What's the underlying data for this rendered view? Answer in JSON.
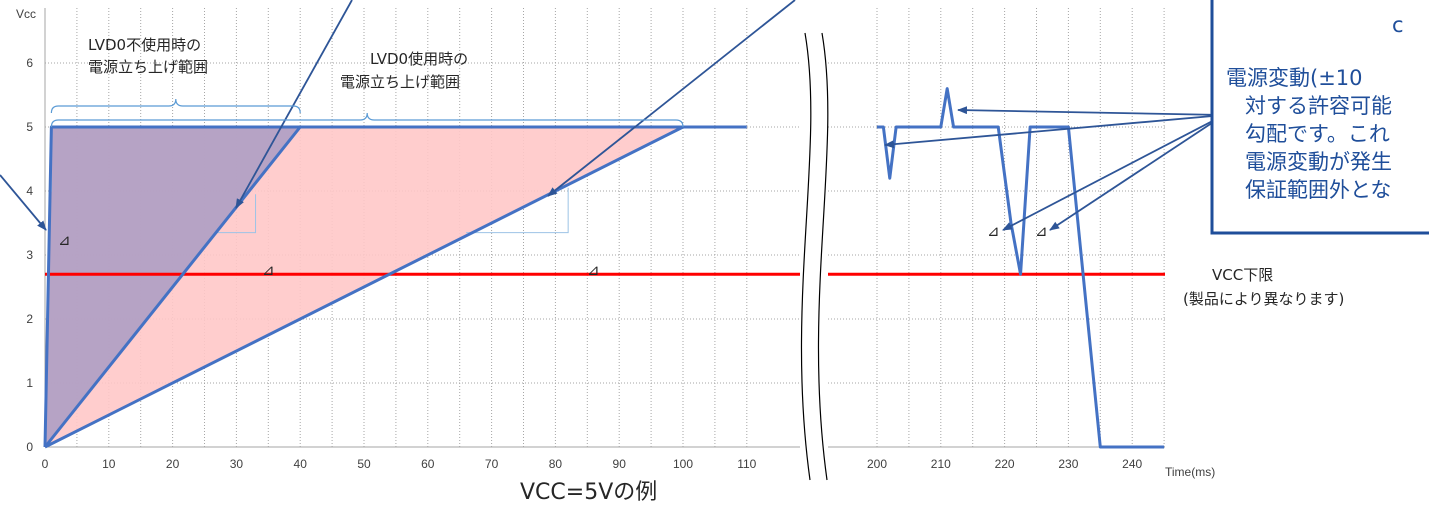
{
  "chart_data": {
    "type": "line",
    "ylabel": "Vcc",
    "xlabel": "Time(ms)",
    "caption": "VCC=5Vの例",
    "y_ticks": [
      "0",
      "1",
      "2",
      "3",
      "4",
      "5",
      "6"
    ],
    "x_ticks_left": [
      "0",
      "10",
      "20",
      "30",
      "40",
      "50",
      "60",
      "70",
      "80",
      "90",
      "100",
      "110"
    ],
    "x_ticks_right": [
      "200",
      "210",
      "220",
      "230",
      "240"
    ],
    "ylim": [
      0,
      6.5
    ],
    "grid": true,
    "axis_break": "between 110 and 200",
    "series": [
      {
        "name": "",
        "x": [
          0,
          1,
          40,
          100,
          110
        ],
        "y": [
          0,
          5,
          5,
          5,
          5
        ]
      },
      {
        "name": "",
        "x": [
          0,
          40
        ],
        "y": [
          0,
          5
        ]
      },
      {
        "name": "",
        "x": [
          0,
          100
        ],
        "y": [
          0,
          5
        ]
      },
      {
        "name": "",
        "x": [
          200,
          201,
          202,
          203,
          210,
          211,
          212,
          219,
          221,
          222.5,
          224,
          225,
          229,
          230,
          235,
          245
        ],
        "y": [
          5,
          5,
          4.2,
          5,
          5,
          5.6,
          5,
          5,
          3.5,
          2.7,
          5,
          5,
          5,
          5,
          0,
          0
        ]
      }
    ],
    "vcc_limit": {
      "value": 2.7,
      "label": "VCC下限",
      "note": "(製品により異なります)",
      "color": "#ff0000"
    },
    "shaded_regions": [
      {
        "x": [
          0,
          40
        ],
        "color": "#b2a0c4"
      },
      {
        "x": [
          0,
          100
        ],
        "color": "#ffc8c8"
      }
    ],
    "annotations": {
      "range_without_lvd0": [
        "LVD0不使用時の",
        "電源立ち上げ範囲"
      ],
      "range_with_lvd0": [
        "LVD0使用時の",
        "電源立ち上げ範囲"
      ],
      "slope_symbol": "⊿",
      "note_box": [
        "c",
        "電源変動(±10",
        "対する許容可能",
        "勾配です。これ",
        "電源変動が発生",
        "保証範囲外とな"
      ]
    },
    "colors": {
      "line": "#4472c4",
      "limit": "#ff0000",
      "grid": "#a6a6a6"
    }
  }
}
